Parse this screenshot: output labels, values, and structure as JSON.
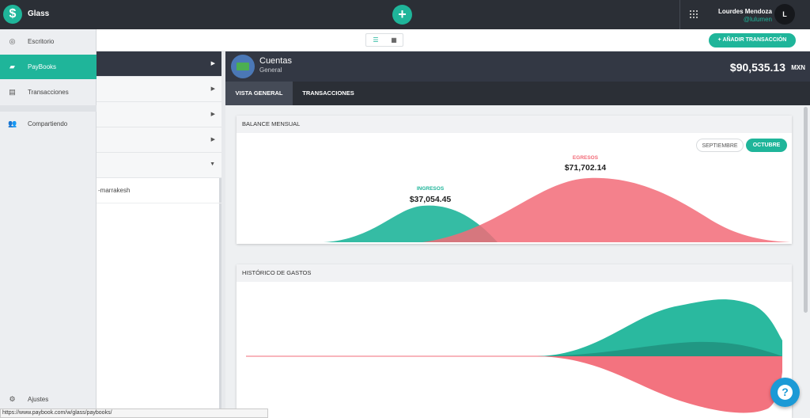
{
  "app": {
    "title": "Glass",
    "logo_glyph": "$"
  },
  "header": {
    "add_glyph": "+",
    "user_name": "Lourdes Mendoza",
    "user_handle": "@lulumen",
    "avatar_initial": "L"
  },
  "nav": {
    "items": [
      {
        "label": "Escritorio",
        "icon": "target-icon"
      },
      {
        "label": "PayBooks",
        "icon": "book-icon"
      },
      {
        "label": "Transacciones",
        "icon": "document-icon"
      },
      {
        "label": "Compartiendo",
        "icon": "users-icon"
      }
    ],
    "settings_label": "Ajustes"
  },
  "toolbar": {
    "add_transaction_label": "AÑADIR TRANSACCIÓN"
  },
  "list": {
    "visible_item_text": "-marrakesh"
  },
  "account": {
    "name": "Cuentas",
    "subtitle": "General",
    "balance": "$90,535.13",
    "currency": "MXN"
  },
  "tabs": [
    {
      "label": "VISTA GENERAL",
      "active": true
    },
    {
      "label": "TRANSACCIONES",
      "active": false
    }
  ],
  "balance_chart": {
    "title": "BALANCE MENSUAL",
    "months": [
      "SEPTIEMBRE",
      "OCTUBRE"
    ],
    "selected_month": "OCTUBRE",
    "income_label": "INGRESOS",
    "income_value": "$37,054.45",
    "expense_label": "EGRESOS",
    "expense_value": "$71,702.14"
  },
  "history_chart": {
    "title": "HISTÓRICO DE GASTOS"
  },
  "chart_data": {
    "type": "area",
    "series": [
      {
        "name": "INGRESOS",
        "total": 37054.45
      },
      {
        "name": "EGRESOS",
        "total": 71702.14
      }
    ]
  },
  "colors": {
    "accent": "#1fb59a",
    "income": "#1fb59a",
    "expense": "#f26b78",
    "dark": "#333844"
  },
  "status_bar": {
    "url": "https://www.paybook.com/w/glass/paybooks/"
  }
}
